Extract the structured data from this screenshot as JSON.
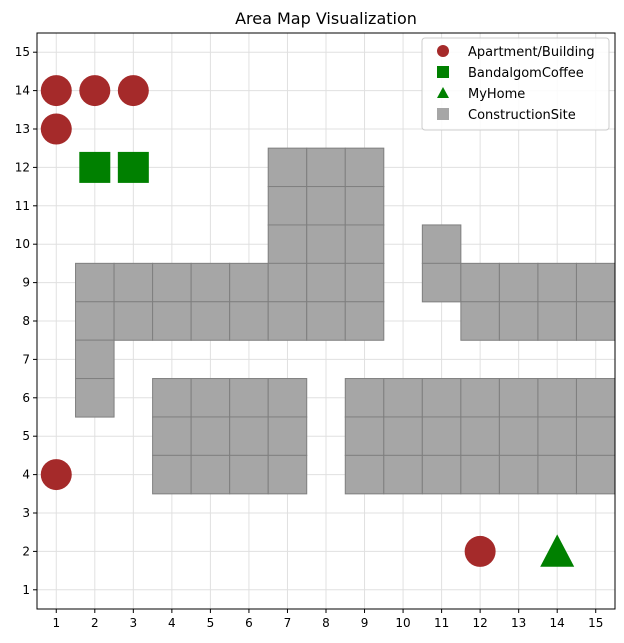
{
  "chart_data": {
    "type": "scatter",
    "title": "Area Map Visualization",
    "xlabel": "",
    "ylabel": "",
    "xlim": [
      0.5,
      15.5
    ],
    "ylim": [
      0.5,
      15.5
    ],
    "xticks": [
      1,
      2,
      3,
      4,
      5,
      6,
      7,
      8,
      9,
      10,
      11,
      12,
      13,
      14,
      15
    ],
    "yticks": [
      1,
      2,
      3,
      4,
      5,
      6,
      7,
      8,
      9,
      10,
      11,
      12,
      13,
      14,
      15
    ],
    "grid": true,
    "legend_position": "top-right",
    "series": [
      {
        "name": "Apartment/Building",
        "marker": "circle",
        "color": "#a52a2a",
        "points": [
          [
            1,
            14
          ],
          [
            2,
            14
          ],
          [
            3,
            14
          ],
          [
            1,
            13
          ],
          [
            1,
            4
          ],
          [
            12,
            2
          ]
        ]
      },
      {
        "name": "BandalgomCoffee",
        "marker": "square",
        "color": "#008000",
        "points": [
          [
            2,
            12
          ],
          [
            3,
            12
          ]
        ]
      },
      {
        "name": "MyHome",
        "marker": "triangle",
        "color": "#008000",
        "points": [
          [
            14,
            2
          ]
        ]
      },
      {
        "name": "ConstructionSite",
        "marker": "square",
        "color": "#a6a6a6",
        "points": [
          [
            7,
            12
          ],
          [
            8,
            12
          ],
          [
            9,
            12
          ],
          [
            7,
            11
          ],
          [
            8,
            11
          ],
          [
            9,
            11
          ],
          [
            7,
            10
          ],
          [
            8,
            10
          ],
          [
            9,
            10
          ],
          [
            11,
            10
          ],
          [
            2,
            9
          ],
          [
            3,
            9
          ],
          [
            4,
            9
          ],
          [
            5,
            9
          ],
          [
            6,
            9
          ],
          [
            7,
            9
          ],
          [
            8,
            9
          ],
          [
            9,
            9
          ],
          [
            11,
            9
          ],
          [
            12,
            9
          ],
          [
            13,
            9
          ],
          [
            14,
            9
          ],
          [
            15,
            9
          ],
          [
            2,
            8
          ],
          [
            3,
            8
          ],
          [
            4,
            8
          ],
          [
            5,
            8
          ],
          [
            6,
            8
          ],
          [
            7,
            8
          ],
          [
            8,
            8
          ],
          [
            9,
            8
          ],
          [
            12,
            8
          ],
          [
            13,
            8
          ],
          [
            14,
            8
          ],
          [
            15,
            8
          ],
          [
            2,
            7
          ],
          [
            2,
            6
          ],
          [
            4,
            6
          ],
          [
            5,
            6
          ],
          [
            6,
            6
          ],
          [
            7,
            6
          ],
          [
            9,
            6
          ],
          [
            10,
            6
          ],
          [
            11,
            6
          ],
          [
            12,
            6
          ],
          [
            13,
            6
          ],
          [
            14,
            6
          ],
          [
            15,
            6
          ],
          [
            4,
            5
          ],
          [
            5,
            5
          ],
          [
            6,
            5
          ],
          [
            7,
            5
          ],
          [
            9,
            5
          ],
          [
            10,
            5
          ],
          [
            11,
            5
          ],
          [
            12,
            5
          ],
          [
            13,
            5
          ],
          [
            14,
            5
          ],
          [
            15,
            5
          ],
          [
            4,
            4
          ],
          [
            5,
            4
          ],
          [
            6,
            4
          ],
          [
            7,
            4
          ],
          [
            9,
            4
          ],
          [
            10,
            4
          ],
          [
            11,
            4
          ],
          [
            12,
            4
          ],
          [
            13,
            4
          ],
          [
            14,
            4
          ],
          [
            15,
            4
          ]
        ]
      }
    ]
  }
}
